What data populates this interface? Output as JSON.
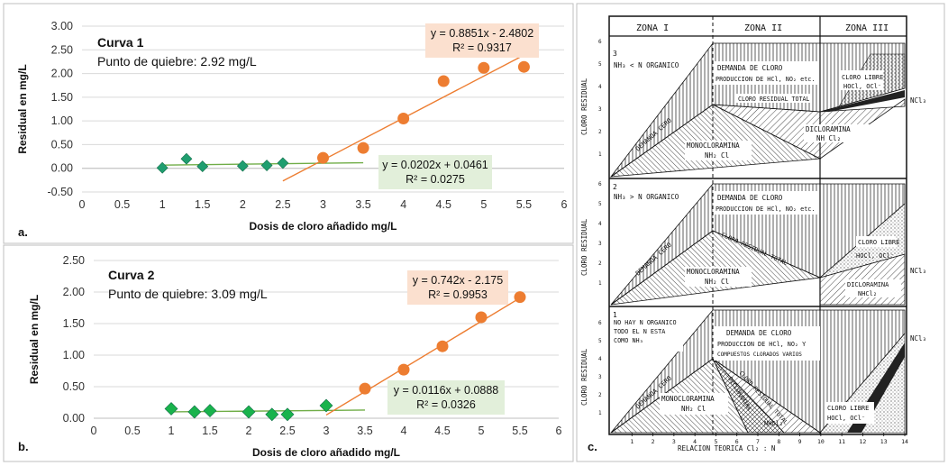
{
  "chart_data": [
    {
      "type": "scatter",
      "panel": "a.",
      "title": "Curva 1",
      "subtitle": "Punto de quiebre: 2.92 mg/L",
      "xlabel": "Dosis de cloro añadido mg/L",
      "ylabel": "Residual en mg/L",
      "xlim": [
        0,
        6
      ],
      "ylim": [
        -0.5,
        3.0
      ],
      "xticks": [
        "0",
        "0.5",
        "1",
        "1.5",
        "2",
        "2.5",
        "3",
        "3.5",
        "4",
        "4.5",
        "5",
        "5.5",
        "6"
      ],
      "yticks": [
        "-0.50",
        "0.00",
        "0.50",
        "1.00",
        "1.50",
        "2.00",
        "2.50",
        "3.00"
      ],
      "grid": "horizontal",
      "series": [
        {
          "marker": "diamond",
          "color": "#1f9e6f",
          "x": [
            1.0,
            1.3,
            1.5,
            2.0,
            2.3,
            2.5
          ],
          "y": [
            0.01,
            0.2,
            0.04,
            0.05,
            0.06,
            0.11
          ],
          "trend": {
            "equation": "y = 0.0202x + 0.0461",
            "r2": "R² = 0.0275",
            "slope": 0.0202,
            "intercept": 0.0461,
            "range": [
              1.0,
              3.5
            ],
            "color": "#70ad47"
          }
        },
        {
          "marker": "circle",
          "color": "#ed7d31",
          "x": [
            3.0,
            3.5,
            4.0,
            4.5,
            5.0,
            5.5
          ],
          "y": [
            0.22,
            0.43,
            1.05,
            1.84,
            2.12,
            2.14
          ],
          "trend": {
            "equation": "y = 0.8851x - 2.4802",
            "r2": "R² = 0.9317",
            "slope": 0.8851,
            "intercept": -2.4802,
            "range": [
              2.5,
              5.5
            ],
            "color": "#ed7d31"
          }
        }
      ]
    },
    {
      "type": "scatter",
      "panel": "b.",
      "title": "Curva 2",
      "subtitle": "Punto de quiebre: 3.09 mg/L",
      "xlabel": "Dosis de cloro añadido mg/L",
      "ylabel": "Residual en mg/L",
      "xlim": [
        0,
        6
      ],
      "ylim": [
        0,
        2.5
      ],
      "xticks": [
        "0",
        "0.5",
        "1",
        "1.5",
        "2",
        "2.5",
        "3",
        "3.5",
        "4",
        "4.5",
        "5",
        "5.5",
        "6"
      ],
      "yticks": [
        "0.00",
        "0.50",
        "1.00",
        "1.50",
        "2.00",
        "2.50"
      ],
      "grid": "horizontal",
      "series": [
        {
          "marker": "diamond",
          "color": "#19b34c",
          "x": [
            1.0,
            1.3,
            1.5,
            2.0,
            2.3,
            2.5,
            3.0
          ],
          "y": [
            0.15,
            0.1,
            0.12,
            0.1,
            0.06,
            0.06,
            0.2
          ],
          "trend": {
            "equation": "y = 0.0116x + 0.0888",
            "r2": "R² = 0.0326",
            "slope": 0.0116,
            "intercept": 0.0888,
            "range": [
              1.0,
              3.5
            ],
            "color": "#70ad47"
          }
        },
        {
          "marker": "circle",
          "color": "#ed7d31",
          "x": [
            3.5,
            4.0,
            4.5,
            5.0,
            5.5
          ],
          "y": [
            0.47,
            0.77,
            1.14,
            1.6,
            1.92
          ],
          "trend": {
            "equation": "y = 0.742x - 2.175",
            "r2": "R² = 0.9953",
            "slope": 0.742,
            "intercept": -2.175,
            "range": [
              3.0,
              5.5
            ],
            "color": "#ed7d31"
          }
        }
      ]
    }
  ],
  "diagram": {
    "panel": "c.",
    "zones": [
      "ZONA  I",
      "ZONA  II",
      "ZONA  III"
    ],
    "y_axis_label": "CLORO  RESIDUAL",
    "y_ticks": [
      "1",
      "2",
      "3",
      "4",
      "5",
      "6"
    ],
    "x_ticks": [
      "1",
      "2",
      "3",
      "4",
      "5",
      "6",
      "7",
      "8",
      "9",
      "10",
      "11",
      "12",
      "13",
      "14"
    ],
    "x_axis_label": "RELACION  TEORICA  Cl₂ : N",
    "plot_numbers": [
      "3",
      "2",
      "1"
    ],
    "plot3": {
      "condition": "NH₃ < N ORGANICO",
      "demanda_title": "DEMANDA  DE  CLORO",
      "demanda_sub": "PRODUCCION  DE  HCl, NO₂ etc.",
      "total": "CLORO  RESIDUAL  TOTAL",
      "libre": "CLORO  LIBRE",
      "libre_species": "HOCl, OCl⁻",
      "ncl3": "NCl₃",
      "cero": "DEMANDA  CERO",
      "mono": "MONOCLORAMINA",
      "mono_formula": "NH₂ Cl",
      "di": "DICLORAMINA",
      "di_formula": "NH Cl₂"
    },
    "plot2": {
      "condition": "NH₃ > N ORGANICO",
      "demanda_title": "DEMANDA  DE  CLORO",
      "demanda_sub": "PRODUCCION  DE  HCl, NO₂ etc.",
      "total": "CLORO  RESIDUAL  TOTAL",
      "libre": "CLORO  LIBRE",
      "libre_species": "HOCl, OCl⁻",
      "ncl3": "NCl₃",
      "cero": "DEMANDA  CERO",
      "mono": "MONOCLORAMINA",
      "mono_formula": "NH₂ Cl",
      "di": "DICLORAMINA",
      "di_formula": "NHCl₂"
    },
    "plot1": {
      "condition": [
        "NO  HAY  N  ORGANICO",
        "TODO  EL  N  ESTA",
        "COMO  NH₃"
      ],
      "demanda_title": "DEMANDA  DE  CLORO",
      "demanda_sub": "PRODUCCION  DE  HCl, NO₂ Y",
      "demanda_sub2": "COMPUESTOS  CLORADOS  VARIOS",
      "total": "CLORO  RESIDUAL  TOTAL",
      "libre": "CLORO  LIBRE",
      "libre_species": "HOCl, OCl⁻",
      "ncl3": "NCl₃",
      "cero": "DEMANDA  CERO",
      "mono": "MONOCLORAMINA",
      "mono_formula": "NH₂ Cl",
      "di": "DICLORAMINA",
      "di_formula": "NHCl₂"
    }
  }
}
